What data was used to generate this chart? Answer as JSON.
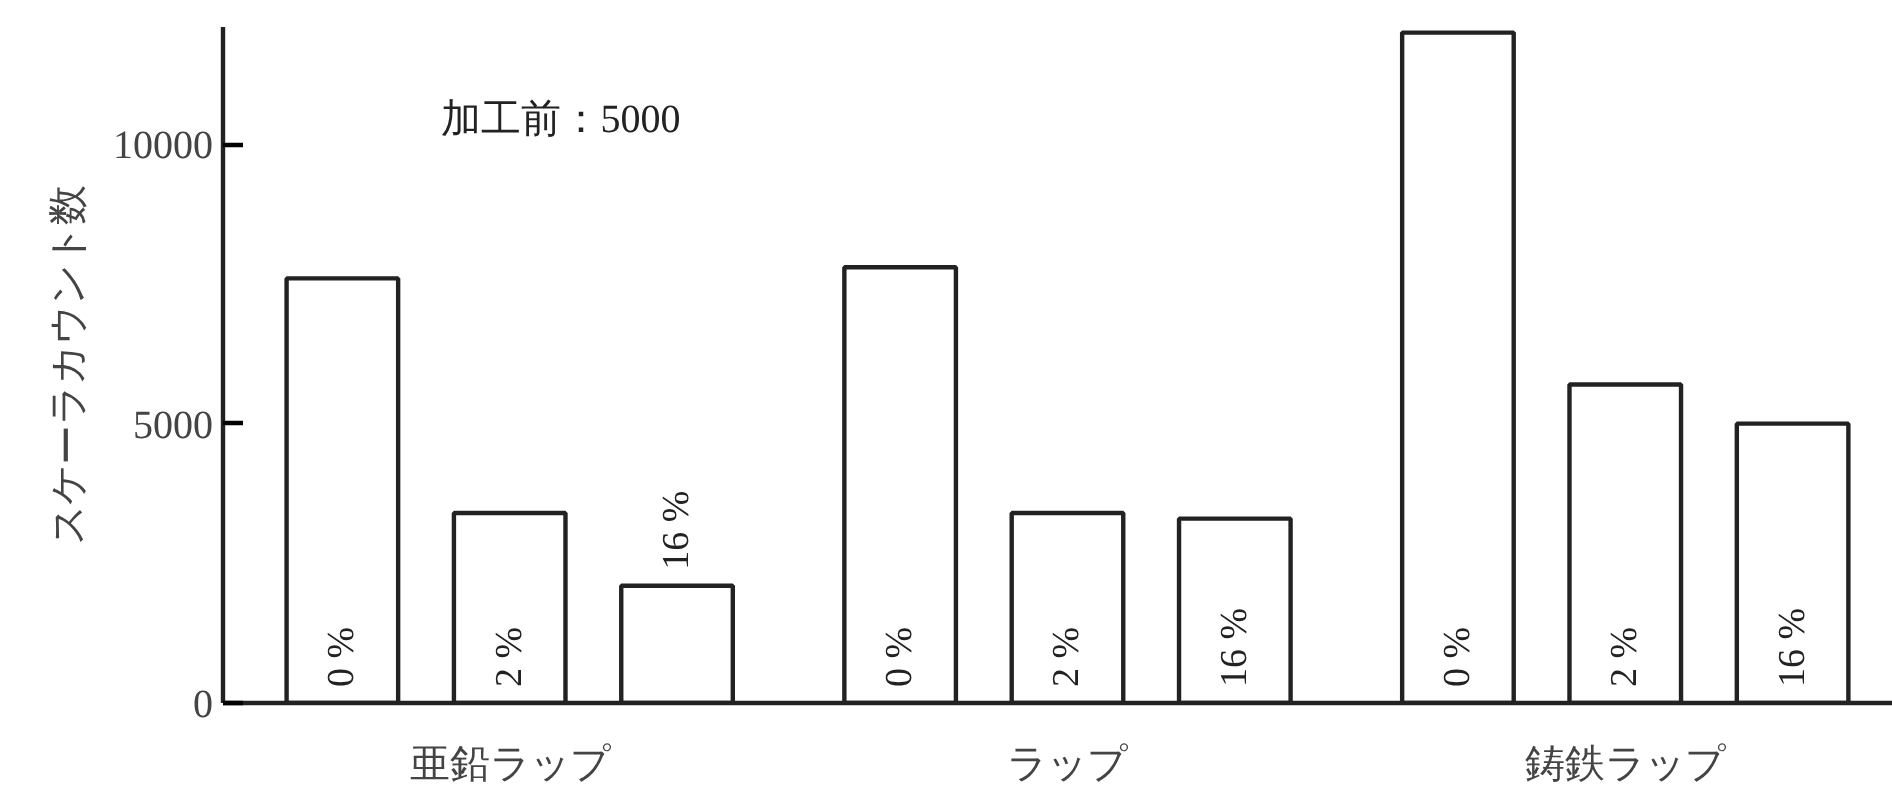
{
  "chart_data": {
    "type": "bar",
    "ylabel": "スケーラカウント数",
    "categories": [
      "亜鉛ラップ",
      "ラップ",
      "鋳鉄ラップ"
    ],
    "series": [
      {
        "name": "0 %",
        "color": "#ffffff",
        "values": [
          7600,
          7800,
          12000
        ]
      },
      {
        "name": "2 %",
        "color": "#ffffff",
        "values": [
          3400,
          3400,
          5700
        ]
      },
      {
        "name": "16 %",
        "color": "#ffffff",
        "values": [
          2100,
          3300,
          5000
        ]
      }
    ],
    "ylim": [
      0,
      12100
    ],
    "yticks": [
      0,
      5000,
      10000
    ],
    "grid": false,
    "annotations": [
      "加工前：5000"
    ]
  }
}
